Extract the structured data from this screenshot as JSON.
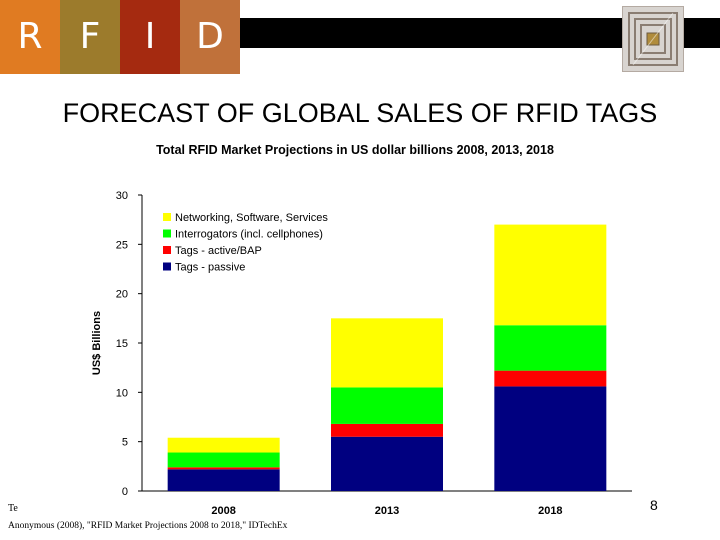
{
  "header": {
    "letters": [
      "R",
      "F",
      "I",
      "D"
    ],
    "tile_colors": [
      "#e07b22",
      "#9c7b2c",
      "#a52a10",
      "#c0713a"
    ],
    "bar_color": "#000000",
    "icon": "rfid-chip-icon"
  },
  "slide_title": "FORECAST OF GLOBAL SALES OF RFID TAGS",
  "footer": {
    "left_text": "Te",
    "citation": "Anonymous (2008), \"RFID Market Projections 2008 to 2018,\" IDTechEx",
    "page_number": "8"
  },
  "chart_data": {
    "type": "bar",
    "stacked": true,
    "title": "Total RFID Market Projections in US dollar billions 2008, 2013, 2018",
    "xlabel": "",
    "ylabel": "US$ Billions",
    "ylim": [
      0,
      30
    ],
    "yticks": [
      "0",
      "5",
      "10",
      "15",
      "20",
      "25",
      "30"
    ],
    "categories": [
      "2008",
      "2013",
      "2018"
    ],
    "legend_position": "top-left",
    "grid": false,
    "series": [
      {
        "name": "Tags - passive",
        "color": "#000080",
        "values": [
          2.2,
          5.5,
          10.6
        ]
      },
      {
        "name": "Tags - active/BAP",
        "color": "#ff0000",
        "values": [
          0.2,
          1.3,
          1.6
        ]
      },
      {
        "name": "Interrogators (incl. cellphones)",
        "color": "#00ff00",
        "values": [
          1.5,
          3.7,
          4.6
        ]
      },
      {
        "name": "Networking, Software, Services",
        "color": "#ffff00",
        "values": [
          1.5,
          7.0,
          10.2
        ]
      }
    ]
  }
}
